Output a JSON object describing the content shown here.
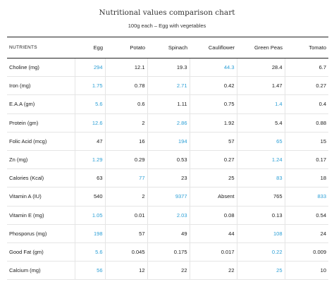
{
  "title": "Nutritional values comparison chart",
  "subtitle": "100g each – Egg with vegetables",
  "headers": [
    "NUTRIENTS",
    "Egg",
    "Potato",
    "Spinach",
    "Cauliflower",
    "Green Peas",
    "Tomato"
  ],
  "highlight_color": "#2b9fd6",
  "rows": [
    {
      "name": "Choline (mg)",
      "values": [
        "294",
        "12.1",
        "19.3",
        "44.3",
        "28.4",
        "6.7"
      ],
      "highlight": [
        0,
        3
      ]
    },
    {
      "name": "Iron (mg)",
      "values": [
        "1.75",
        "0.78",
        "2.71",
        "0.42",
        "1.47",
        "0.27"
      ],
      "highlight": [
        0,
        2
      ]
    },
    {
      "name": "E.A.A (gm)",
      "values": [
        "5.6",
        "0.6",
        "1.11",
        "0.75",
        "1.4",
        "0.4"
      ],
      "highlight": [
        0,
        4
      ]
    },
    {
      "name": "Protein (gm)",
      "values": [
        "12.6",
        "2",
        "2.86",
        "1.92",
        "5.4",
        "0.88"
      ],
      "highlight": [
        0,
        2
      ]
    },
    {
      "name": "Folic Acid (mcg)",
      "values": [
        "47",
        "16",
        "194",
        "57",
        "65",
        "15"
      ],
      "highlight": [
        2,
        4
      ]
    },
    {
      "name": "Zn (mg)",
      "values": [
        "1.29",
        "0.29",
        "0.53",
        "0.27",
        "1.24",
        "0.17"
      ],
      "highlight": [
        0,
        4
      ]
    },
    {
      "name": "Calories (Kcal)",
      "values": [
        "63",
        "77",
        "23",
        "25",
        "83",
        "18"
      ],
      "highlight": [
        1,
        4
      ]
    },
    {
      "name": "Vitamin A (IU)",
      "values": [
        "540",
        "2",
        "9377",
        "Absent",
        "765",
        "833"
      ],
      "highlight": [
        2,
        5
      ]
    },
    {
      "name": "Vitamin E (mg)",
      "values": [
        "1.05",
        "0.01",
        "2.03",
        "0.08",
        "0.13",
        "0.54"
      ],
      "highlight": [
        0,
        2
      ]
    },
    {
      "name": "Phosporus (mg)",
      "values": [
        "198",
        "57",
        "49",
        "44",
        "108",
        "24"
      ],
      "highlight": [
        0,
        4
      ]
    },
    {
      "name": "Good Fat (gm)",
      "values": [
        "5.6",
        "0.045",
        "0.175",
        "0.017",
        "0.22",
        "0.009"
      ],
      "highlight": [
        0,
        4
      ]
    },
    {
      "name": "Calcium (mg)",
      "values": [
        "56",
        "12",
        "22",
        "22",
        "25",
        "10"
      ],
      "highlight": [
        0,
        4
      ]
    }
  ]
}
